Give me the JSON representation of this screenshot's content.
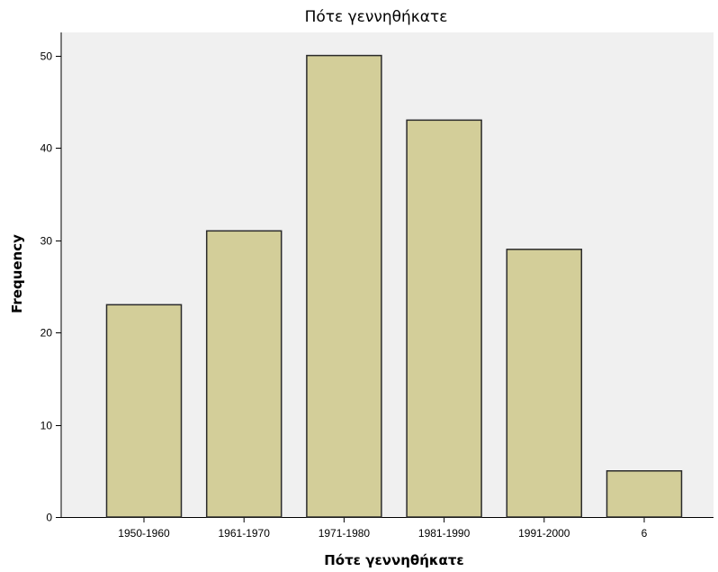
{
  "chart_data": {
    "type": "bar",
    "title": "Πότε γεννηθήκατε",
    "xlabel": "Πότε γεννηθήκατε",
    "ylabel": "Frequency",
    "categories": [
      "1950-1960",
      "1961-1970",
      "1971-1980",
      "1981-1990",
      "1991-2000",
      "6"
    ],
    "values": [
      23,
      31,
      50,
      43,
      29,
      5
    ],
    "ylim": [
      0,
      52.5
    ],
    "yticks": [
      0,
      10,
      20,
      30,
      40,
      50
    ],
    "grid": false,
    "legend": "none",
    "colors": {
      "bar_fill": "#d3ce99",
      "bar_stroke": "#2b2b2b",
      "plot_background": "#f0f0f0",
      "axis": "#000000"
    }
  }
}
